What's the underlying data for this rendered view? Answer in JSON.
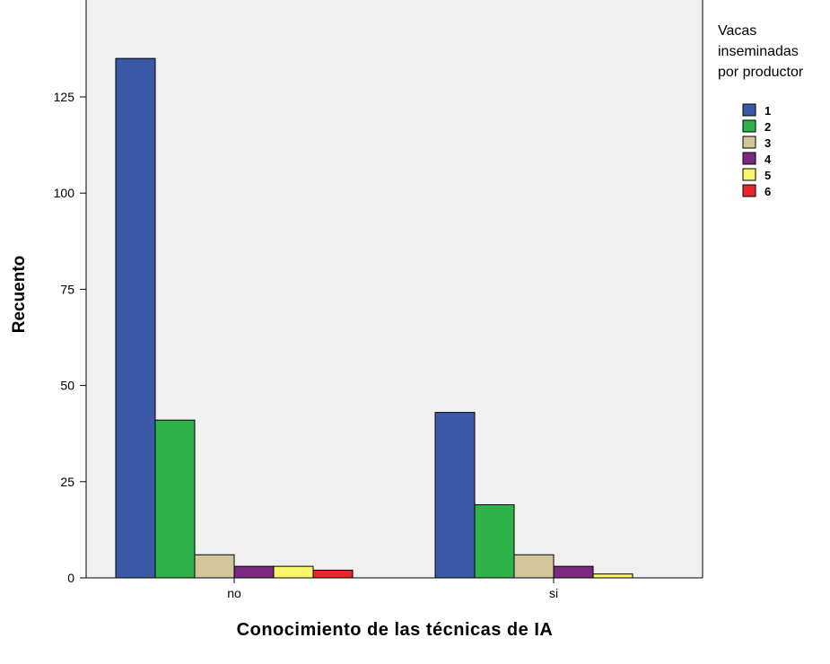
{
  "chart_data": {
    "type": "bar",
    "title": "",
    "xlabel": "Conocimiento de las técnicas de IA",
    "ylabel": "Recuento",
    "categories": [
      "no",
      "si"
    ],
    "ylim": [
      0,
      150
    ],
    "yticks": [
      0,
      25,
      50,
      75,
      100,
      125
    ],
    "grid": false,
    "legend": {
      "title_lines": [
        "Vacas",
        "inseminadas",
        "por productor"
      ],
      "placement": "right"
    },
    "series": [
      {
        "name": "1",
        "color": "#3c59a7",
        "values": [
          135,
          43
        ]
      },
      {
        "name": "2",
        "color": "#2fb24a",
        "values": [
          41,
          19
        ]
      },
      {
        "name": "3",
        "color": "#d1c79b",
        "values": [
          6,
          6
        ]
      },
      {
        "name": "4",
        "color": "#7a2a7e",
        "values": [
          3,
          3
        ]
      },
      {
        "name": "5",
        "color": "#f8f66a",
        "values": [
          3,
          1
        ]
      },
      {
        "name": "6",
        "color": "#e8272a",
        "values": [
          2,
          null
        ]
      }
    ],
    "plot_background": "#f0f0f0"
  }
}
